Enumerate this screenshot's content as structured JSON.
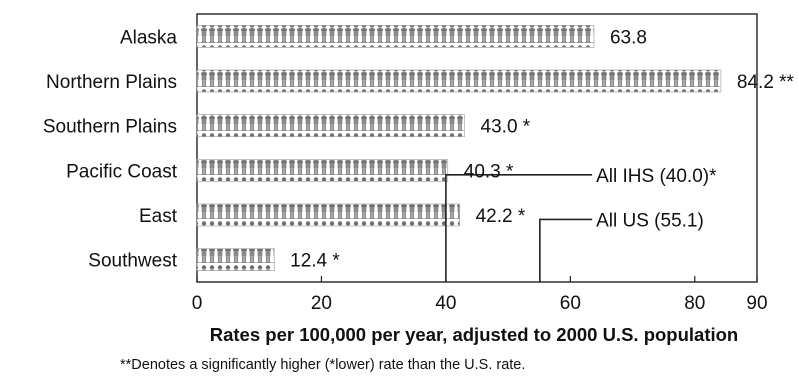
{
  "chart_data": {
    "type": "bar",
    "orientation": "horizontal",
    "categories": [
      "Alaska",
      "Northern Plains",
      "Southern Plains",
      "Pacific Coast",
      "East",
      "Southwest"
    ],
    "values": [
      63.8,
      84.2,
      43.0,
      40.3,
      42.2,
      12.4
    ],
    "value_labels": [
      "63.8",
      "84.2 **",
      "43.0 *",
      "40.3 *",
      "42.2 *",
      "12.4 *"
    ],
    "xlabel": "Rates per 100,000 per year, adjusted to 2000 U.S. population",
    "xlim": [
      0,
      90
    ],
    "xticks": [
      0,
      20,
      40,
      60,
      80,
      90
    ],
    "xtick_labels": [
      "0",
      "20",
      "40",
      "60",
      "80",
      "90"
    ],
    "grid": false,
    "reference_lines": [
      {
        "label": "All IHS (40.0)*",
        "value": 40.0
      },
      {
        "label": "All US (55.1)",
        "value": 55.1
      }
    ],
    "bar_fill": "pictogram",
    "colors": {
      "bar_pattern": "#6f6f6f",
      "axis": "#222222",
      "text": "#111111"
    }
  },
  "footnote": "**Denotes a significantly higher (*lower) rate than the U.S. rate."
}
